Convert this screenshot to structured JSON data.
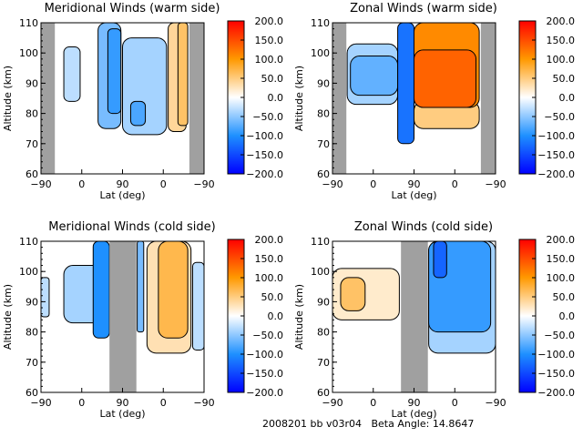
{
  "footer": "2008201 bb v03r04   Beta Angle: 14.8647",
  "colorscale": {
    "min": -200,
    "max": 200,
    "low": "#0000ff",
    "mid_low": "#1e90ff",
    "zero": "#ffffff",
    "mid_high": "#ff9900",
    "high": "#ff0000",
    "mask": "#a0a0a0"
  },
  "chart_data": [
    {
      "type": "heatmap",
      "title": "Meridional Winds (warm side)",
      "xlabel": "Lat (deg)",
      "ylabel": "Altitude (km)",
      "xticks": [
        "-90",
        "0",
        "90",
        "0",
        "-90"
      ],
      "yticks": [
        "60",
        "70",
        "80",
        "90",
        "100",
        "110"
      ],
      "ylim": [
        60,
        110
      ],
      "colorbar_ticks": [
        "200.0",
        "150.0",
        "100.0",
        "50.0",
        "0.0",
        "-50.0",
        "-100.0",
        "-150.0",
        "-200.0"
      ],
      "masked_x_ranges": [
        [
          0,
          0.085
        ],
        [
          0.91,
          1.0
        ]
      ],
      "regions": [
        {
          "x": [
            0.35,
            0.49
          ],
          "alt": [
            75,
            110
          ],
          "value": -60
        },
        {
          "x": [
            0.41,
            0.49
          ],
          "alt": [
            80,
            108
          ],
          "value": -90
        },
        {
          "x": [
            0.5,
            0.77
          ],
          "alt": [
            73,
            105
          ],
          "value": -40
        },
        {
          "x": [
            0.55,
            0.64
          ],
          "alt": [
            76,
            84
          ],
          "value": -80
        },
        {
          "x": [
            0.14,
            0.24
          ],
          "alt": [
            84,
            102
          ],
          "value": -30
        },
        {
          "x": [
            0.78,
            0.89
          ],
          "alt": [
            74,
            110
          ],
          "value": 40
        },
        {
          "x": [
            0.84,
            0.9
          ],
          "alt": [
            76,
            110
          ],
          "value": 60
        }
      ]
    },
    {
      "type": "heatmap",
      "title": "Zonal Winds (warm side)",
      "xlabel": "Lat (deg)",
      "ylabel": "Altitude (km)",
      "xticks": [
        "-90",
        "0",
        "90",
        "0",
        "-90"
      ],
      "yticks": [
        "60",
        "70",
        "80",
        "90",
        "100",
        "110"
      ],
      "ylim": [
        60,
        110
      ],
      "colorbar_ticks": [
        "200.0",
        "150.0",
        "100.0",
        "50.0",
        "0.0",
        "-50.0",
        "-100.0",
        "-150.0",
        "-200.0"
      ],
      "masked_x_ranges": [
        [
          0,
          0.085
        ],
        [
          0.91,
          1.0
        ]
      ],
      "regions": [
        {
          "x": [
            0.09,
            0.4
          ],
          "alt": [
            83,
            103
          ],
          "value": -40
        },
        {
          "x": [
            0.11,
            0.4
          ],
          "alt": [
            86,
            99
          ],
          "value": -70
        },
        {
          "x": [
            0.4,
            0.5
          ],
          "alt": [
            70,
            110
          ],
          "value": -120
        },
        {
          "x": [
            0.5,
            0.9
          ],
          "alt": [
            75,
            84
          ],
          "value": 50
        },
        {
          "x": [
            0.5,
            0.9
          ],
          "alt": [
            82,
            110
          ],
          "value": 110
        },
        {
          "x": [
            0.5,
            0.88
          ],
          "alt": [
            82,
            101
          ],
          "value": 135
        }
      ]
    },
    {
      "type": "heatmap",
      "title": "Meridional Winds (cold side)",
      "xlabel": "Lat (deg)",
      "ylabel": "Altitude (km)",
      "xticks": [
        "-90",
        "0",
        "90",
        "0",
        "-90"
      ],
      "yticks": [
        "60",
        "70",
        "80",
        "90",
        "100",
        "110"
      ],
      "ylim": [
        60,
        110
      ],
      "colorbar_ticks": [
        "200.0",
        "150.0",
        "100.0",
        "50.0",
        "0.0",
        "-50.0",
        "-100.0",
        "-150.0",
        "-200.0"
      ],
      "masked_x_ranges": [
        [
          0.42,
          0.585
        ]
      ],
      "regions": [
        {
          "x": [
            0.0,
            0.05
          ],
          "alt": [
            85,
            98
          ],
          "value": -30
        },
        {
          "x": [
            0.14,
            0.42
          ],
          "alt": [
            83,
            102
          ],
          "value": -40
        },
        {
          "x": [
            0.32,
            0.42
          ],
          "alt": [
            78,
            110
          ],
          "value": -100
        },
        {
          "x": [
            0.59,
            0.63
          ],
          "alt": [
            80,
            110
          ],
          "value": -60
        },
        {
          "x": [
            0.65,
            0.92
          ],
          "alt": [
            73,
            110
          ],
          "value": 30
        },
        {
          "x": [
            0.72,
            0.9
          ],
          "alt": [
            78,
            110
          ],
          "value": 70
        },
        {
          "x": [
            0.93,
            1.0
          ],
          "alt": [
            74,
            103
          ],
          "value": -30
        }
      ]
    },
    {
      "type": "heatmap",
      "title": "Zonal Winds (cold side)",
      "xlabel": "Lat (deg)",
      "ylabel": "Altitude (km)",
      "xticks": [
        "-90",
        "0",
        "90",
        "0",
        "-90"
      ],
      "yticks": [
        "60",
        "70",
        "80",
        "90",
        "100",
        "110"
      ],
      "ylim": [
        60,
        110
      ],
      "colorbar_ticks": [
        "200.0",
        "150.0",
        "100.0",
        "50.0",
        "0.0",
        "-50.0",
        "-100.0",
        "-150.0",
        "-200.0"
      ],
      "masked_x_ranges": [
        [
          0.42,
          0.585
        ]
      ],
      "regions": [
        {
          "x": [
            0.0,
            0.41
          ],
          "alt": [
            84,
            101
          ],
          "value": 20
        },
        {
          "x": [
            0.05,
            0.2
          ],
          "alt": [
            87,
            98
          ],
          "value": 60
        },
        {
          "x": [
            0.59,
            1.0
          ],
          "alt": [
            73,
            110
          ],
          "value": -40
        },
        {
          "x": [
            0.59,
            0.97
          ],
          "alt": [
            80,
            110
          ],
          "value": -90
        },
        {
          "x": [
            0.62,
            0.7
          ],
          "alt": [
            98,
            110
          ],
          "value": -130
        }
      ]
    }
  ]
}
